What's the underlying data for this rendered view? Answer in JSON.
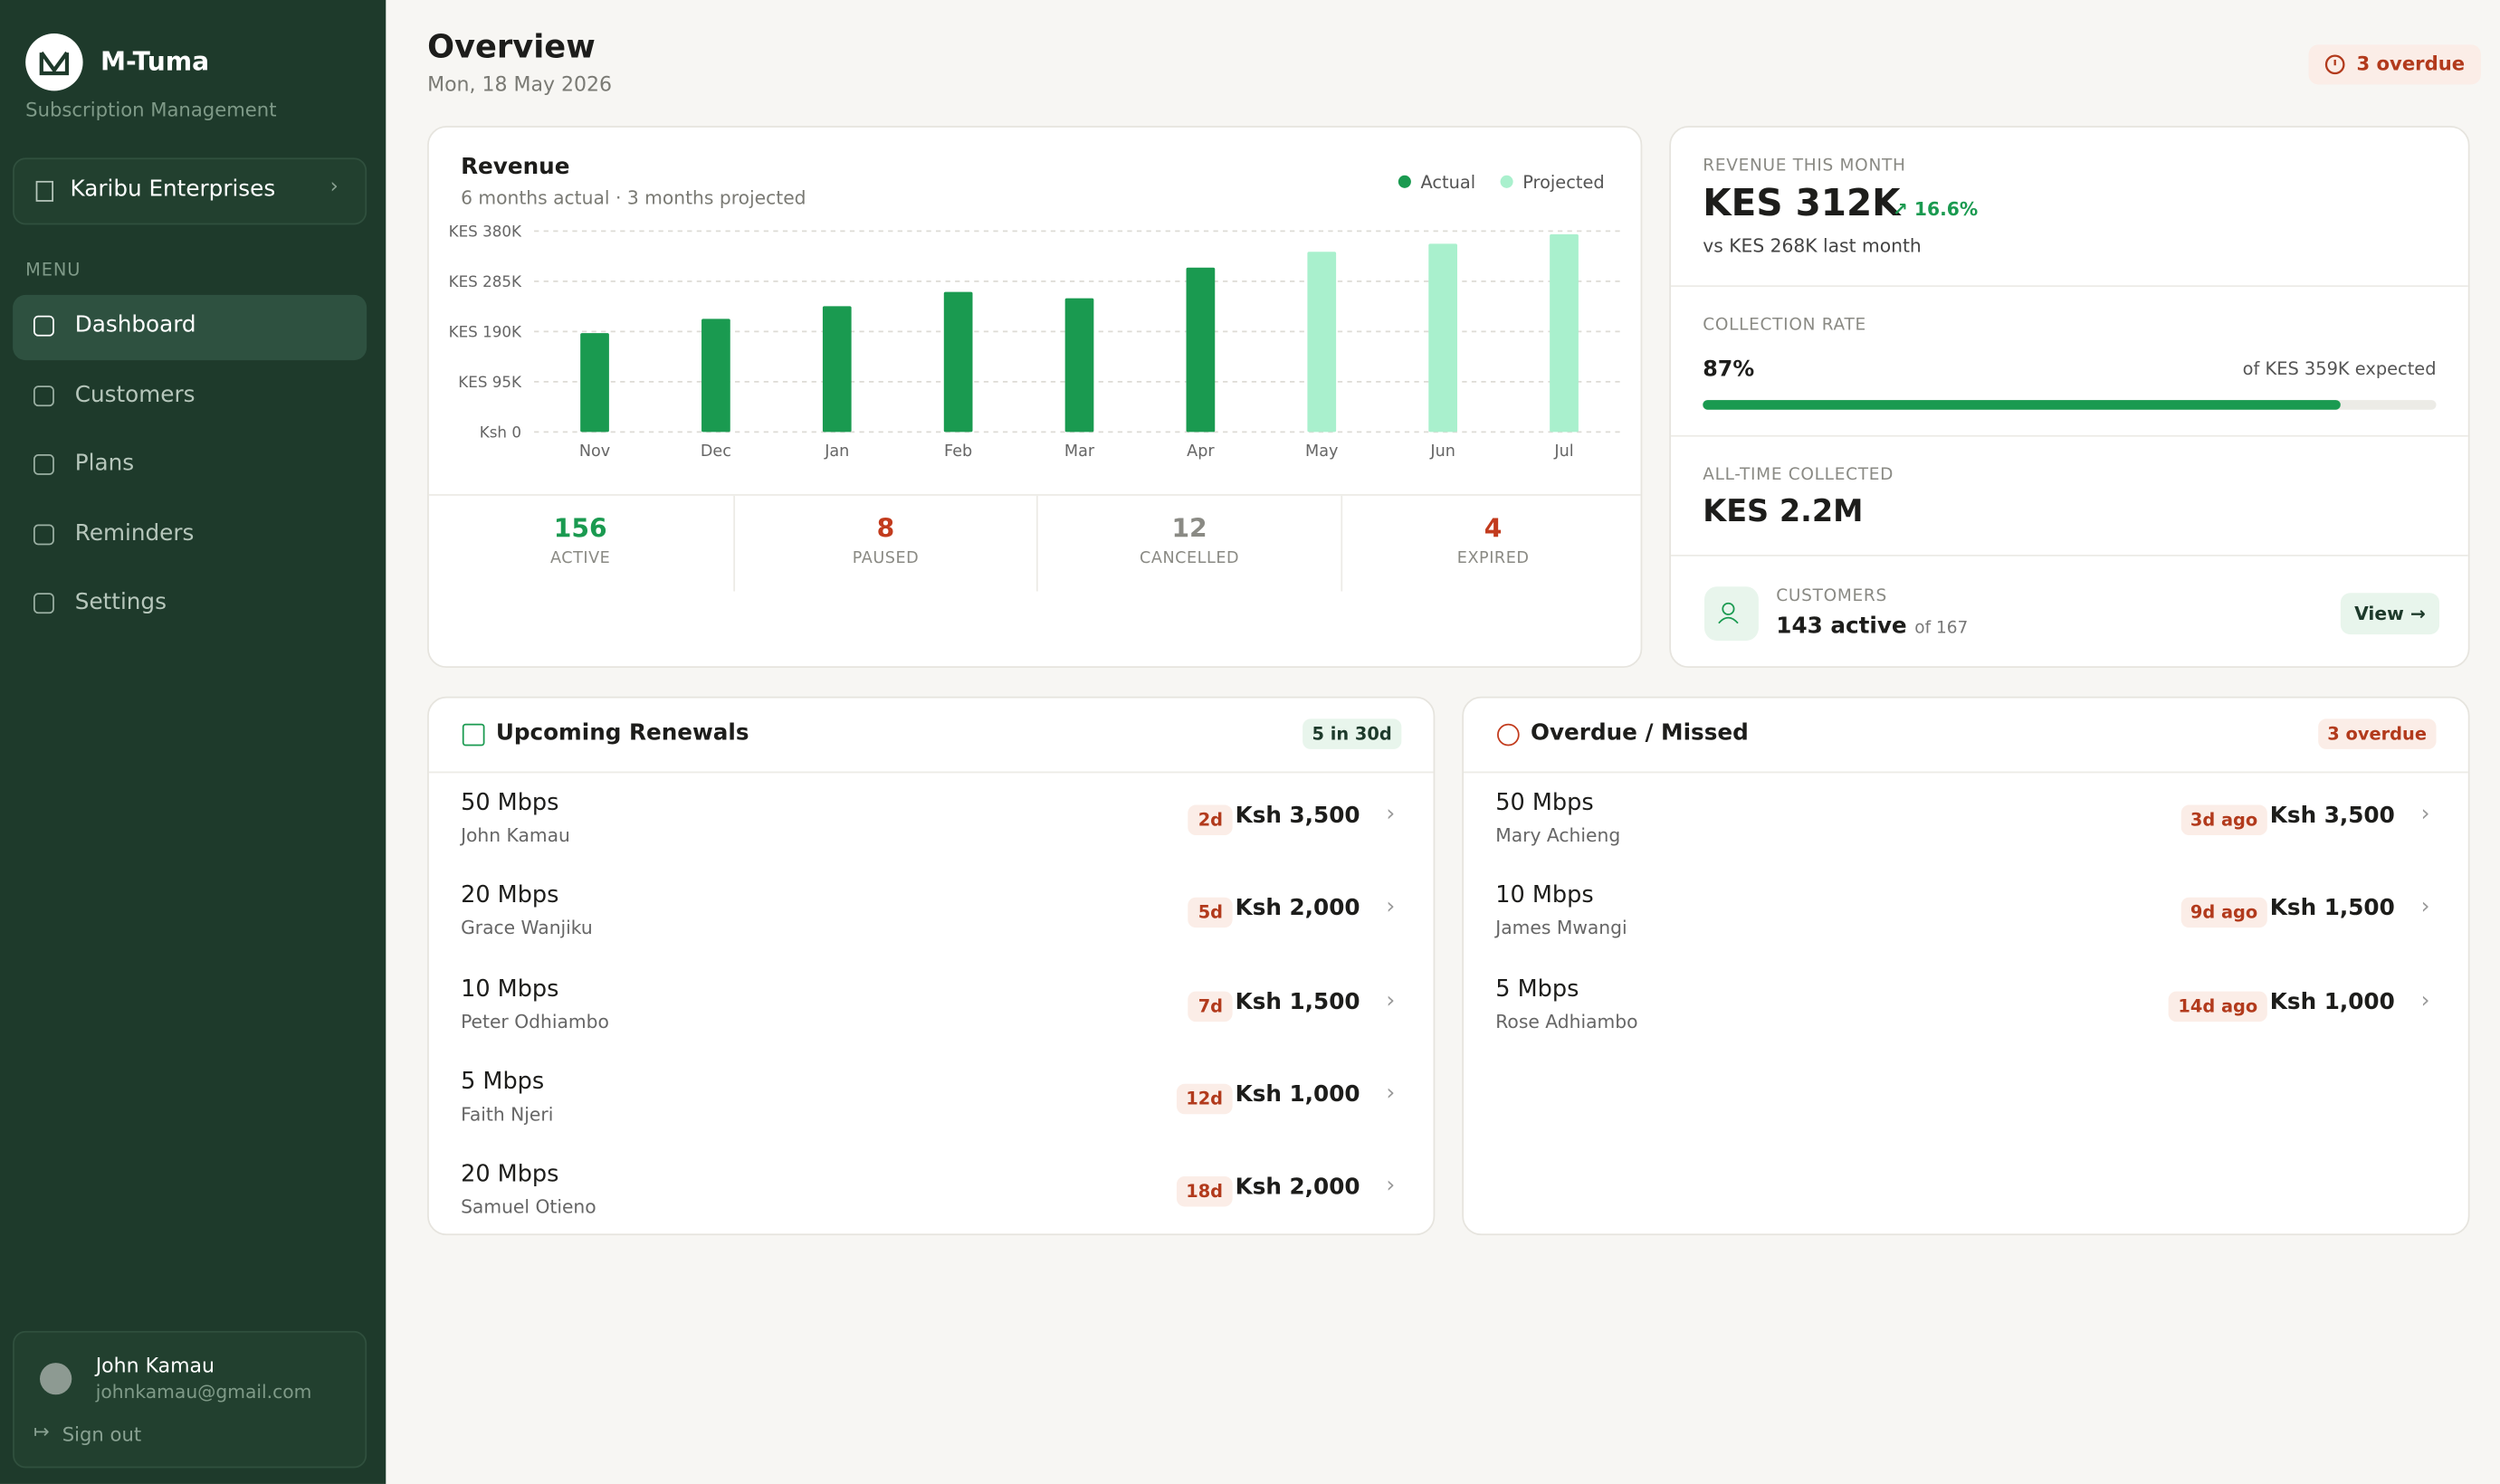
{
  "sidebar": {
    "brand": "M-Tuma",
    "tagline": "Subscription Management",
    "org": "Karibu Enterprises",
    "menu_label": "MENU",
    "menu": [
      "Dashboard",
      "Customers",
      "Plans",
      "Reminders",
      "Settings"
    ],
    "user": {
      "name": "John Kamau",
      "email": "johnkamau@gmail.com",
      "sign_out": "Sign out"
    }
  },
  "header": {
    "title": "Overview",
    "date": "Mon, 18 May 2026",
    "badge": "3 overdue"
  },
  "revenue_chart": {
    "type": "bar",
    "title": "Revenue",
    "subtitle": "6 months actual · 3 months projected",
    "categories": [
      "Nov",
      "Dec",
      "Jan",
      "Feb",
      "Mar",
      "Apr",
      "May",
      "Jun",
      "Jul"
    ],
    "series": [
      {
        "name": "Actual",
        "color": "#1a9a50",
        "values": [
          187000,
          214000,
          238000,
          265000,
          253000,
          311000,
          null,
          null,
          null
        ]
      },
      {
        "name": "Projected",
        "color": "#a9f0cd",
        "values": [
          null,
          null,
          null,
          null,
          null,
          null,
          341000,
          356000,
          374000
        ]
      }
    ],
    "ylim": [
      0,
      380000
    ],
    "yticks": [
      {
        "value": 0,
        "label": "Ksh 0"
      },
      {
        "value": 95000,
        "label": "KES 95K"
      },
      {
        "value": 190000,
        "label": "KES 190K"
      },
      {
        "value": 285000,
        "label": "KES 285K"
      },
      {
        "value": 380000,
        "label": "KES 380K"
      }
    ],
    "grid": true,
    "legend": "top-right"
  },
  "status_counts": [
    {
      "value": 156,
      "label": "ACTIVE"
    },
    {
      "value": 8,
      "label": "PAUSED"
    },
    {
      "value": 12,
      "label": "CANCELLED"
    },
    {
      "value": 4,
      "label": "EXPIRED"
    }
  ],
  "stats": {
    "revenue_month": {
      "label": "REVENUE THIS MONTH",
      "value": "KES 312K",
      "change": "16.6%",
      "note": "vs KES 268K last month"
    },
    "collection_rate": {
      "label": "COLLECTION RATE",
      "value": 87,
      "value_label": "87%",
      "note": "of KES 359K expected"
    },
    "all_time": {
      "label": "ALL-TIME COLLECTED",
      "value": "KES 2.2M"
    },
    "customers": {
      "label": "CUSTOMERS",
      "active": "143 active",
      "total": "of 167",
      "action": "View →"
    }
  },
  "renewals": {
    "title": "Upcoming Renewals",
    "badge": "5 in 30d",
    "rows": [
      {
        "plan": "50 Mbps",
        "name": "John Kamau",
        "due": "2d",
        "amount": "Ksh 3,500"
      },
      {
        "plan": "20 Mbps",
        "name": "Grace Wanjiku",
        "due": "5d",
        "amount": "Ksh 2,000"
      },
      {
        "plan": "10 Mbps",
        "name": "Peter Odhiambo",
        "due": "7d",
        "amount": "Ksh 1,500"
      },
      {
        "plan": "5 Mbps",
        "name": "Faith Njeri",
        "due": "12d",
        "amount": "Ksh 1,000"
      },
      {
        "plan": "20 Mbps",
        "name": "Samuel Otieno",
        "due": "18d",
        "amount": "Ksh 2,000"
      }
    ]
  },
  "overdue": {
    "title": "Overdue / Missed",
    "badge": "3 overdue",
    "rows": [
      {
        "plan": "50 Mbps",
        "name": "Mary Achieng",
        "due": "3d ago",
        "amount": "Ksh 3,500"
      },
      {
        "plan": "10 Mbps",
        "name": "James Mwangi",
        "due": "9d ago",
        "amount": "Ksh 1,500"
      },
      {
        "plan": "5 Mbps",
        "name": "Rose Adhiambo",
        "due": "14d ago",
        "amount": "Ksh 1,000"
      }
    ]
  }
}
